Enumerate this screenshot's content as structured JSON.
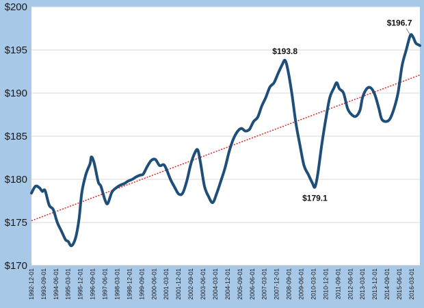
{
  "chart_data": {
    "type": "line",
    "title": "",
    "xlabel": "",
    "ylabel": "",
    "ylim": [
      170,
      200
    ],
    "y_ticks": [
      170,
      175,
      180,
      185,
      190,
      195,
      200
    ],
    "y_tick_labels": [
      "$170",
      "$175",
      "$180",
      "$185",
      "$190",
      "$195",
      "$200"
    ],
    "x_range": [
      "1992-12-01",
      "2016-09-01"
    ],
    "x_tick_labels": [
      "1992-12-01",
      "1993-09-01",
      "1994-06-01",
      "1995-03-01",
      "1995-12-01",
      "1996-09-01",
      "1997-06-01",
      "1998-03-01",
      "1998-12-01",
      "1999-09-01",
      "2000-06-01",
      "2001-03-01",
      "2001-12-01",
      "2002-09-01",
      "2003-06-01",
      "2004-03-01",
      "2004-12-01",
      "2005-09-01",
      "2006-06-01",
      "2007-03-01",
      "2007-12-01",
      "2008-09-01",
      "2009-06-01",
      "2010-03-01",
      "2010-12-01",
      "2011-09-01",
      "2012-06-01",
      "2013-03-01",
      "2013-12-01",
      "2014-09-01",
      "2015-06-01",
      "2016-03-01"
    ],
    "grid": "horizontal",
    "series": [
      {
        "color": "#1f4e79",
        "points": [
          [
            "1992-12-01",
            178.4
          ],
          [
            "1993-03-01",
            179.2
          ],
          [
            "1993-06-01",
            179.0
          ],
          [
            "1993-08-01",
            178.6
          ],
          [
            "1993-10-01",
            178.7
          ],
          [
            "1994-01-01",
            177.0
          ],
          [
            "1994-04-01",
            176.5
          ],
          [
            "1994-07-01",
            175.0
          ],
          [
            "1994-10-01",
            174.0
          ],
          [
            "1995-01-01",
            173.0
          ],
          [
            "1995-03-01",
            172.8
          ],
          [
            "1995-05-01",
            172.3
          ],
          [
            "1995-07-01",
            172.6
          ],
          [
            "1995-09-01",
            173.6
          ],
          [
            "1995-11-01",
            175.5
          ],
          [
            "1996-01-01",
            178.5
          ],
          [
            "1996-04-01",
            180.6
          ],
          [
            "1996-07-01",
            181.8
          ],
          [
            "1996-08-01",
            182.6
          ],
          [
            "1996-10-01",
            181.9
          ],
          [
            "1997-01-01",
            179.7
          ],
          [
            "1997-03-01",
            179.2
          ],
          [
            "1997-06-01",
            177.6
          ],
          [
            "1997-08-01",
            177.2
          ],
          [
            "1997-11-01",
            178.5
          ],
          [
            "1998-02-01",
            179.0
          ],
          [
            "1998-05-01",
            179.3
          ],
          [
            "1998-08-01",
            179.5
          ],
          [
            "1998-11-01",
            179.8
          ],
          [
            "1999-02-01",
            180.0
          ],
          [
            "1999-05-01",
            180.3
          ],
          [
            "1999-08-01",
            180.5
          ],
          [
            "1999-10-01",
            180.6
          ],
          [
            "2000-01-01",
            181.5
          ],
          [
            "2000-04-01",
            182.2
          ],
          [
            "2000-07-01",
            182.3
          ],
          [
            "2000-10-01",
            181.6
          ],
          [
            "2001-01-01",
            181.7
          ],
          [
            "2001-03-01",
            181.2
          ],
          [
            "2001-06-01",
            180.0
          ],
          [
            "2001-09-01",
            179.1
          ],
          [
            "2001-12-01",
            178.3
          ],
          [
            "2002-03-01",
            178.4
          ],
          [
            "2002-06-01",
            179.8
          ],
          [
            "2002-09-01",
            181.8
          ],
          [
            "2002-12-01",
            183.1
          ],
          [
            "2003-02-01",
            183.4
          ],
          [
            "2003-04-01",
            182.0
          ],
          [
            "2003-07-01",
            179.2
          ],
          [
            "2003-10-01",
            178.0
          ],
          [
            "2004-01-01",
            177.3
          ],
          [
            "2004-04-01",
            178.4
          ],
          [
            "2004-07-01",
            179.8
          ],
          [
            "2004-10-01",
            181.3
          ],
          [
            "2005-01-01",
            183.2
          ],
          [
            "2005-04-01",
            184.6
          ],
          [
            "2005-07-01",
            185.5
          ],
          [
            "2005-10-01",
            185.9
          ],
          [
            "2006-01-01",
            185.6
          ],
          [
            "2006-04-01",
            185.8
          ],
          [
            "2006-07-01",
            186.7
          ],
          [
            "2006-10-01",
            187.2
          ],
          [
            "2007-01-01",
            188.5
          ],
          [
            "2007-04-01",
            189.5
          ],
          [
            "2007-07-01",
            190.7
          ],
          [
            "2007-10-01",
            191.2
          ],
          [
            "2008-01-01",
            192.3
          ],
          [
            "2008-04-01",
            193.3
          ],
          [
            "2008-06-01",
            193.8
          ],
          [
            "2008-08-01",
            192.8
          ],
          [
            "2008-11-01",
            190.0
          ],
          [
            "2009-02-01",
            186.5
          ],
          [
            "2009-05-01",
            184.0
          ],
          [
            "2009-08-01",
            181.6
          ],
          [
            "2009-11-01",
            180.6
          ],
          [
            "2010-02-01",
            179.6
          ],
          [
            "2010-04-01",
            179.1
          ],
          [
            "2010-06-01",
            180.5
          ],
          [
            "2010-09-01",
            184.0
          ],
          [
            "2010-12-01",
            187.0
          ],
          [
            "2011-03-01",
            189.5
          ],
          [
            "2011-06-01",
            190.6
          ],
          [
            "2011-08-01",
            191.2
          ],
          [
            "2011-10-01",
            190.5
          ],
          [
            "2012-01-01",
            190.0
          ],
          [
            "2012-04-01",
            188.2
          ],
          [
            "2012-07-01",
            187.5
          ],
          [
            "2012-10-01",
            187.3
          ],
          [
            "2013-01-01",
            188.0
          ],
          [
            "2013-03-01",
            189.5
          ],
          [
            "2013-06-01",
            190.5
          ],
          [
            "2013-09-01",
            190.6
          ],
          [
            "2013-12-01",
            189.8
          ],
          [
            "2014-03-01",
            188.2
          ],
          [
            "2014-05-01",
            187.0
          ],
          [
            "2014-08-01",
            186.7
          ],
          [
            "2014-11-01",
            187.0
          ],
          [
            "2015-02-01",
            188.2
          ],
          [
            "2015-05-01",
            190.0
          ],
          [
            "2015-08-01",
            193.2
          ],
          [
            "2015-11-01",
            195.0
          ],
          [
            "2016-02-01",
            196.7
          ],
          [
            "2016-04-01",
            196.5
          ],
          [
            "2016-06-01",
            195.8
          ],
          [
            "2016-08-01",
            195.6
          ],
          [
            "2016-09-01",
            195.5
          ]
        ]
      }
    ],
    "trendline": {
      "color": "#e02020",
      "style": "dotted",
      "points": [
        [
          "1992-12-01",
          175.2
        ],
        [
          "2016-09-01",
          192.1
        ]
      ]
    },
    "annotations": [
      {
        "label": "$193.8",
        "x": "2008-06-01",
        "y": 193.8
      },
      {
        "label": "$179.1",
        "x": "2010-04-01",
        "y": 179.1
      },
      {
        "label": "$196.7",
        "x": "2016-02-01",
        "y": 196.7
      }
    ]
  }
}
